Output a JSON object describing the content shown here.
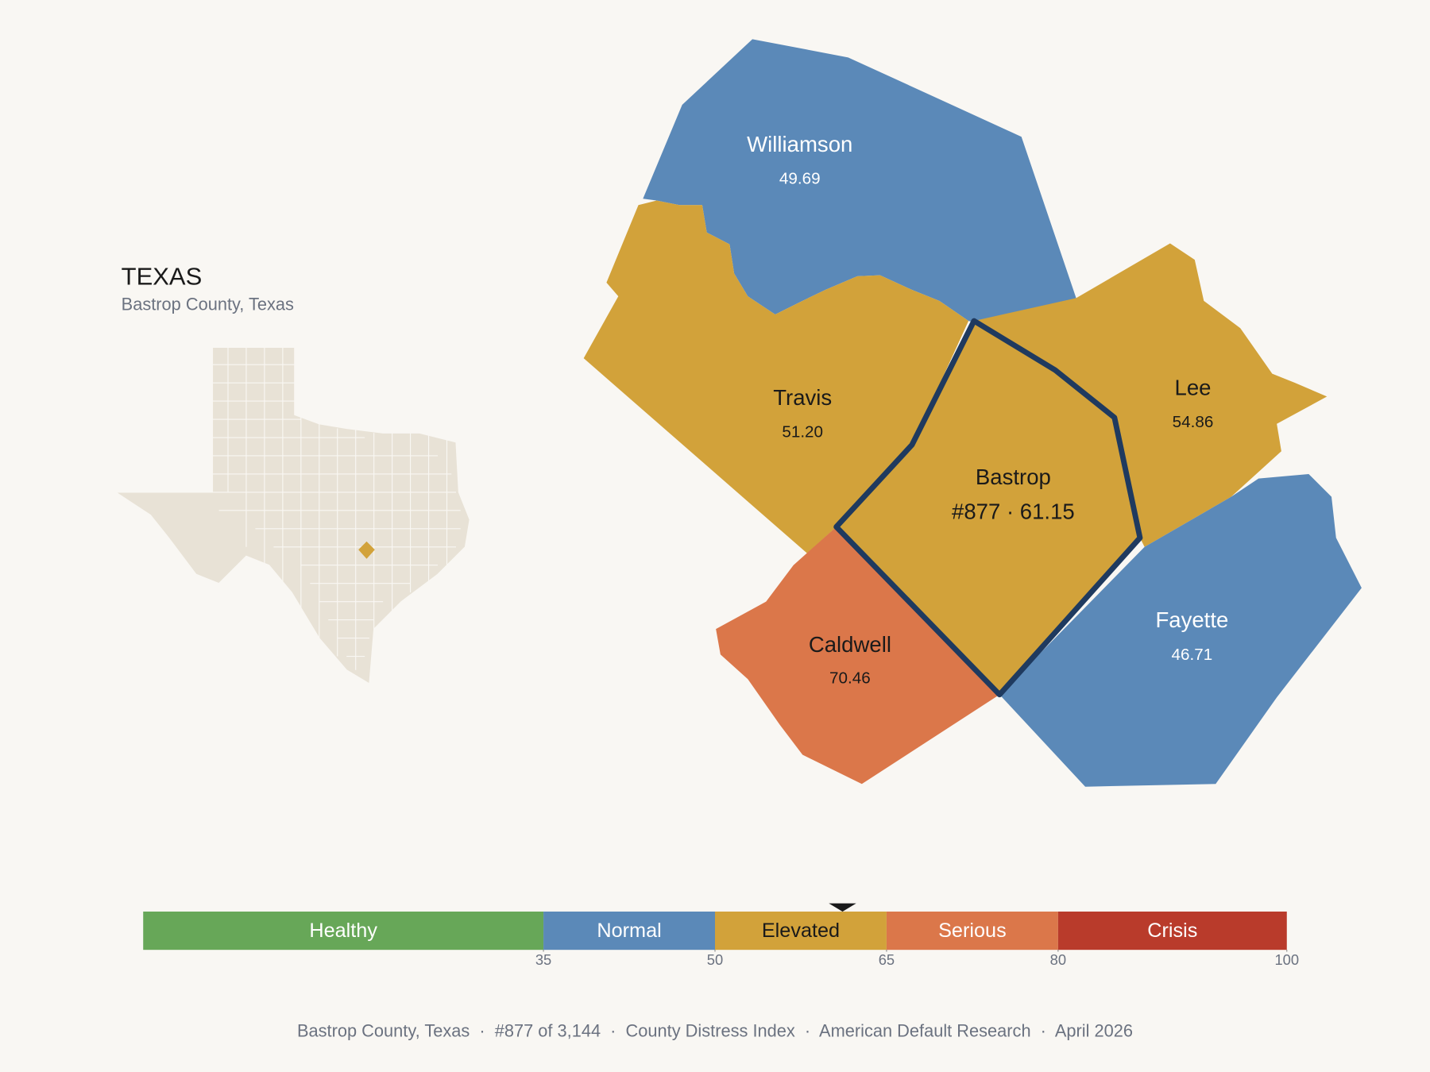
{
  "header": {
    "title": "TEXAS",
    "subtitle": "Bastrop County, Texas"
  },
  "counties": [
    {
      "name": "Williamson",
      "value": "49.69",
      "color": "#5b89b8"
    },
    {
      "name": "Travis",
      "value": "51.20",
      "color": "#d2a23a"
    },
    {
      "name": "Lee",
      "value": "54.86",
      "color": "#d2a23a"
    },
    {
      "name": "Fayette",
      "value": "46.71",
      "color": "#5b89b8"
    },
    {
      "name": "Caldwell",
      "value": "70.46",
      "color": "#db774a"
    },
    {
      "name": "Bastrop",
      "value": "#877 · 61.15",
      "color": "#d2a23a"
    }
  ],
  "scale": {
    "bands": [
      {
        "name": "Healthy",
        "color": "#67a758"
      },
      {
        "name": "Normal",
        "color": "#5b89b8"
      },
      {
        "name": "Elevated",
        "color": "#d2a23a"
      },
      {
        "name": "Serious",
        "color": "#db774a"
      },
      {
        "name": "Crisis",
        "color": "#b93b2b"
      }
    ],
    "xlim": [
      0,
      100
    ],
    "xticks": [
      35,
      50,
      65,
      80,
      100
    ],
    "marker": 61.15
  },
  "footer": "Bastrop County, Texas  ·  #877 of 3,144  ·  County Distress Index  ·  American Default Research  ·  April 2026"
}
